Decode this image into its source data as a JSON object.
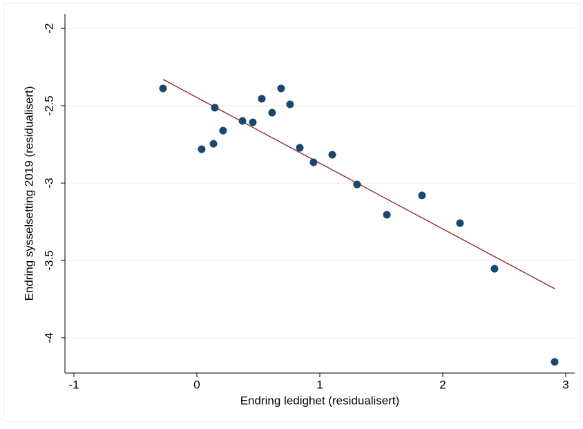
{
  "chart_data": {
    "type": "scatter",
    "x_label": "Endring ledighet (residualisert)",
    "y_label": "Endring sysselsetting 2019 (residualisert)",
    "xlim": [
      -1.073,
      3.073
    ],
    "ylim": [
      -4.228,
      -1.906
    ],
    "xticks": [
      -1,
      0,
      1,
      2,
      3
    ],
    "yticks": [
      -2,
      -2.5,
      -3,
      -3.5,
      -4
    ],
    "grid": true,
    "points": {
      "color": "#1a476f",
      "x": [
        -0.275,
        0.039,
        0.146,
        0.213,
        0.135,
        0.371,
        0.455,
        0.528,
        0.612,
        0.685,
        0.758,
        0.837,
        0.949,
        1.101,
        1.303,
        1.545,
        1.831,
        2.14,
        2.421,
        2.91
      ],
      "values": [
        -2.388,
        -2.781,
        -2.513,
        -2.661,
        -2.746,
        -2.598,
        -2.607,
        -2.455,
        -2.545,
        -2.388,
        -2.491,
        -2.772,
        -2.866,
        -2.817,
        -3.009,
        -3.205,
        -3.08,
        -3.259,
        -3.554,
        -4.156
      ]
    },
    "fit": {
      "color": "#90353b",
      "x": [
        -0.275,
        2.91
      ],
      "values": [
        -2.33,
        -3.683
      ]
    }
  }
}
